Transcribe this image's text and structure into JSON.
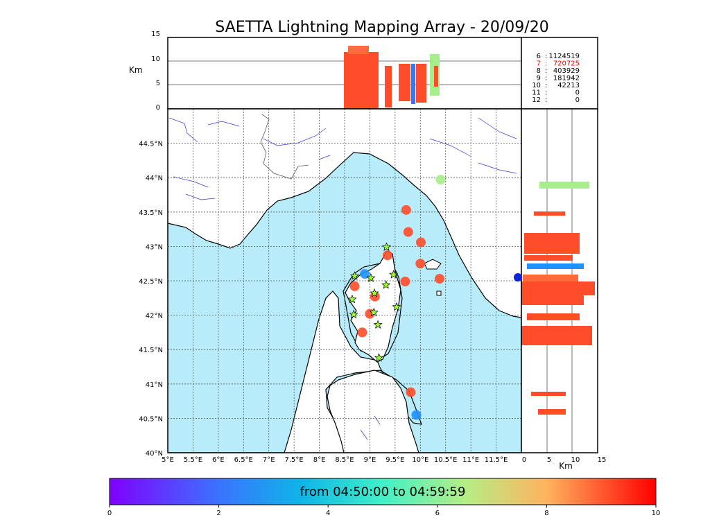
{
  "title": "SAETTA Lightning Mapping Array - 20/09/20",
  "altitude_panel": {
    "unit_label": "Km",
    "y_ticks": [
      "0",
      "5",
      "10",
      "15"
    ]
  },
  "side_panel": {
    "unit_label": "Km",
    "x_ticks": [
      "0",
      "5",
      "10",
      "15"
    ]
  },
  "station_counts": [
    {
      "stations": "6",
      "count": "1124519",
      "highlight": false
    },
    {
      "stations": "7",
      "count": "720725",
      "highlight": true
    },
    {
      "stations": "8",
      "count": "403929",
      "highlight": false
    },
    {
      "stations": "9",
      "count": "181942",
      "highlight": false
    },
    {
      "stations": "10",
      "count": "42213",
      "highlight": false
    },
    {
      "stations": "11",
      "count": "0",
      "highlight": false
    },
    {
      "stations": "12",
      "count": "0",
      "highlight": false
    }
  ],
  "map": {
    "lon_ticks": [
      "5°E",
      "5.5°E",
      "6°E",
      "6.5°E",
      "7°E",
      "7.5°E",
      "8°E",
      "8.5°E",
      "9°E",
      "9.5°E",
      "10°E",
      "10.5°E",
      "11°E",
      "11.5°E"
    ],
    "lat_ticks": [
      "40°N",
      "40.5°N",
      "41°N",
      "41.5°N",
      "42°N",
      "42.5°N",
      "43°N",
      "43.5°N",
      "44°N",
      "44.5°N"
    ],
    "lon_range": [
      5.0,
      12.0
    ],
    "lat_range": [
      40.0,
      45.0
    ],
    "sea_color": "#b8ecfa",
    "land_color": "#ffffff",
    "station_marker_color": "#9bff2e"
  },
  "colorbar": {
    "label": "from 04:50:00 to 04:59:59",
    "ticks": [
      "0",
      "2",
      "4",
      "6",
      "8",
      "10"
    ],
    "range": [
      0,
      10
    ],
    "colormap": "rainbow"
  },
  "stations": [
    {
      "lon": 8.7,
      "lat": 42.57
    },
    {
      "lon": 9.02,
      "lat": 42.54
    },
    {
      "lon": 9.33,
      "lat": 42.99
    },
    {
      "lon": 9.47,
      "lat": 42.59
    },
    {
      "lon": 9.32,
      "lat": 42.44
    },
    {
      "lon": 9.09,
      "lat": 42.32
    },
    {
      "lon": 8.65,
      "lat": 42.23
    },
    {
      "lon": 9.53,
      "lat": 42.12
    },
    {
      "lon": 8.68,
      "lat": 42.01
    },
    {
      "lon": 9.08,
      "lat": 42.04
    },
    {
      "lon": 9.16,
      "lat": 41.86
    },
    {
      "lon": 9.18,
      "lat": 41.38
    }
  ],
  "flash_clusters": [
    {
      "lon": 9.76,
      "lat": 43.21,
      "color": "#ff4d2a"
    },
    {
      "lon": 9.72,
      "lat": 43.53,
      "color": "#ff4d2a"
    },
    {
      "lon": 10.01,
      "lat": 43.06,
      "color": "#ff4d2a"
    },
    {
      "lon": 10.0,
      "lat": 42.75,
      "color": "#ff4d2a"
    },
    {
      "lon": 10.38,
      "lat": 42.53,
      "color": "#ff4d2a"
    },
    {
      "lon": 9.7,
      "lat": 42.49,
      "color": "#ff4d2a"
    },
    {
      "lon": 9.35,
      "lat": 42.87,
      "color": "#ff4d2a"
    },
    {
      "lon": 8.7,
      "lat": 42.42,
      "color": "#ff4d2a"
    },
    {
      "lon": 9.1,
      "lat": 42.27,
      "color": "#ff4d2a"
    },
    {
      "lon": 8.9,
      "lat": 42.6,
      "color": "#1e90ff"
    },
    {
      "lon": 9.0,
      "lat": 42.02,
      "color": "#ff4d2a"
    },
    {
      "lon": 8.85,
      "lat": 41.75,
      "color": "#ff4d2a"
    },
    {
      "lon": 10.4,
      "lat": 43.97,
      "color": "#a6ee8c"
    },
    {
      "lon": 9.81,
      "lat": 40.88,
      "color": "#ff4d2a"
    },
    {
      "lon": 9.92,
      "lat": 40.55,
      "color": "#1e90ff"
    }
  ]
}
